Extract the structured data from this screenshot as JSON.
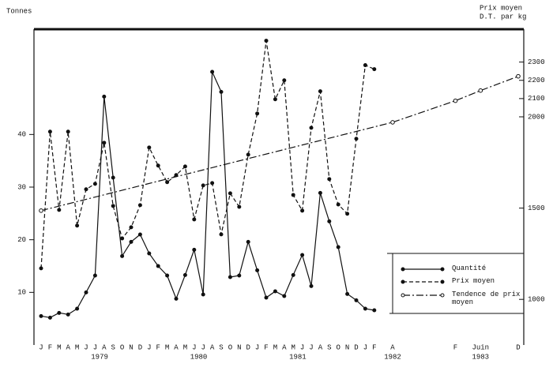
{
  "chart_data": {
    "type": "line",
    "y_label": "Tonnes",
    "y2_label": [
      "Prix moyen",
      "D.T. par kg"
    ],
    "categories": [
      "J",
      "F",
      "M",
      "A",
      "M",
      "J",
      "J",
      "A",
      "S",
      "O",
      "N",
      "D",
      "J",
      "F",
      "M",
      "A",
      "M",
      "J",
      "J",
      "A",
      "S",
      "O",
      "N",
      "D",
      "J",
      "F",
      "M",
      "A",
      "M",
      "J",
      "J",
      "A",
      "S",
      "O",
      "N",
      "D",
      "J",
      "F",
      null,
      "A",
      null,
      null,
      null,
      null,
      null,
      null,
      null,
      null,
      null,
      "F",
      null,
      null,
      null,
      "Juin",
      null,
      null,
      null,
      null,
      null,
      "D"
    ],
    "years": [
      "1979",
      "1980",
      "1981",
      "1982",
      "1983"
    ],
    "ylim": [
      0,
      60
    ],
    "yticks": [
      10,
      20,
      30,
      40
    ],
    "y2lim": [
      750,
      2480
    ],
    "y2ticks": [
      1000,
      1500,
      2000,
      2100,
      2200,
      2300
    ],
    "series": [
      {
        "name": "Quantité",
        "color": "#111111",
        "axis": "y",
        "dash": "solid",
        "marker": "filled",
        "values": [
          5.5,
          5.2,
          6.1,
          5.8,
          6.9,
          10,
          13.2,
          47.2,
          31.8,
          16.9,
          19.6,
          21,
          17.4,
          15,
          13.2,
          8.8,
          13.3,
          18.1,
          9.6,
          51.9,
          48.1,
          12.9,
          13.2,
          19.6,
          14.2,
          9,
          10.2,
          9.3,
          13.3,
          17.1,
          11.2,
          28.9,
          23.5,
          18.6,
          9.7,
          8.5,
          6.9,
          6.6,
          null,
          null,
          null,
          null,
          null,
          null,
          null,
          null,
          null,
          null,
          null,
          null,
          null,
          null,
          null,
          null,
          null,
          null,
          null,
          null,
          null,
          null
        ]
      },
      {
        "name": "Prix moyen",
        "color": "#111111",
        "axis": "y2",
        "dash": "dashed",
        "marker": "filled",
        "values": [
          1170,
          1919,
          1490,
          1919,
          1404,
          1603,
          1633,
          1858,
          1512,
          1334,
          1395,
          1516,
          1832,
          1733,
          1642,
          1681,
          1728,
          1438,
          1624,
          1637,
          1356,
          1581,
          1507,
          1793,
          2018,
          2417,
          2096,
          2200,
          1572,
          1486,
          1940,
          2140,
          1659,
          1520,
          1469,
          1880,
          2283,
          2261,
          null,
          null,
          null,
          null,
          null,
          null,
          null,
          null,
          null,
          null,
          null,
          null,
          null,
          null,
          null,
          null,
          null,
          null,
          null,
          null,
          null,
          null
        ]
      },
      {
        "name": "Tendence de prix moyen",
        "color": "#111111",
        "axis": "y2",
        "dash": "dashdot",
        "marker": "open",
        "connect_gaps": true,
        "values": [
          1486,
          null,
          null,
          null,
          null,
          null,
          null,
          null,
          null,
          null,
          null,
          null,
          null,
          null,
          null,
          null,
          null,
          null,
          null,
          null,
          null,
          null,
          null,
          null,
          null,
          null,
          null,
          null,
          null,
          null,
          null,
          null,
          null,
          null,
          null,
          null,
          null,
          null,
          null,
          1970,
          null,
          null,
          null,
          null,
          null,
          null,
          null,
          null,
          null,
          2088,
          null,
          null,
          null,
          2144,
          null,
          null,
          null,
          null,
          null,
          2222
        ]
      }
    ]
  }
}
